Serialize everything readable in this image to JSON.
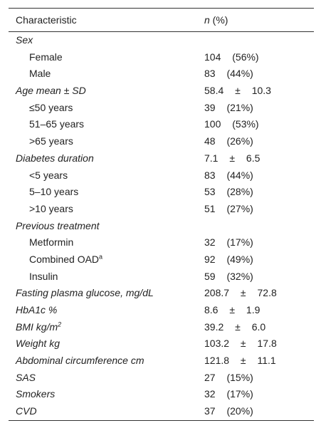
{
  "table": {
    "header": {
      "characteristic": "Characteristic",
      "n": "n",
      "percent": " (%)"
    },
    "groups": [
      {
        "label": "Sex",
        "items": [
          {
            "label": "Female",
            "value": "104 (56%)"
          },
          {
            "label": "Male",
            "value": "83 (44%)"
          }
        ]
      },
      {
        "label": "Age mean ± SD",
        "value": "58.4 ± 10.3",
        "items": [
          {
            "label": "≤50 years",
            "value": "39 (21%)"
          },
          {
            "label": "51–65 years",
            "value": "100 (53%)"
          },
          {
            "label": ">65 years",
            "value": "48 (26%)"
          }
        ]
      },
      {
        "label": "Diabetes duration",
        "value": "7.1 ± 6.5",
        "items": [
          {
            "label": "<5 years",
            "value": "83 (44%)"
          },
          {
            "label": "5–10 years",
            "value": "53 (28%)"
          },
          {
            "label": ">10 years",
            "value": "51 (27%)"
          }
        ]
      },
      {
        "label": "Previous treatment",
        "items": [
          {
            "label": "Metformin",
            "value": "32 (17%)"
          },
          {
            "label": "Combined OAD",
            "sup": "a",
            "value": "92 (49%)"
          },
          {
            "label": "Insulin",
            "value": "59 (32%)"
          }
        ]
      },
      {
        "label": "Fasting plasma glucose, mg/dL",
        "value": "208.7 ± 72.8"
      },
      {
        "label": "HbA1c %",
        "value": "8.6 ± 1.9"
      },
      {
        "label": "BMI kg/m",
        "sup": "2",
        "value": "39.2 ± 6.0"
      },
      {
        "label": "Weight kg",
        "value": "103.2 ± 17.8"
      },
      {
        "label": "Abdominal circumference cm",
        "value": "121.8 ± 11.1"
      },
      {
        "label": "SAS",
        "value": "27 (15%)"
      },
      {
        "label": "Smokers",
        "value": "32 (17%)"
      },
      {
        "label": "CVD",
        "value": "37 (20%)"
      }
    ]
  }
}
